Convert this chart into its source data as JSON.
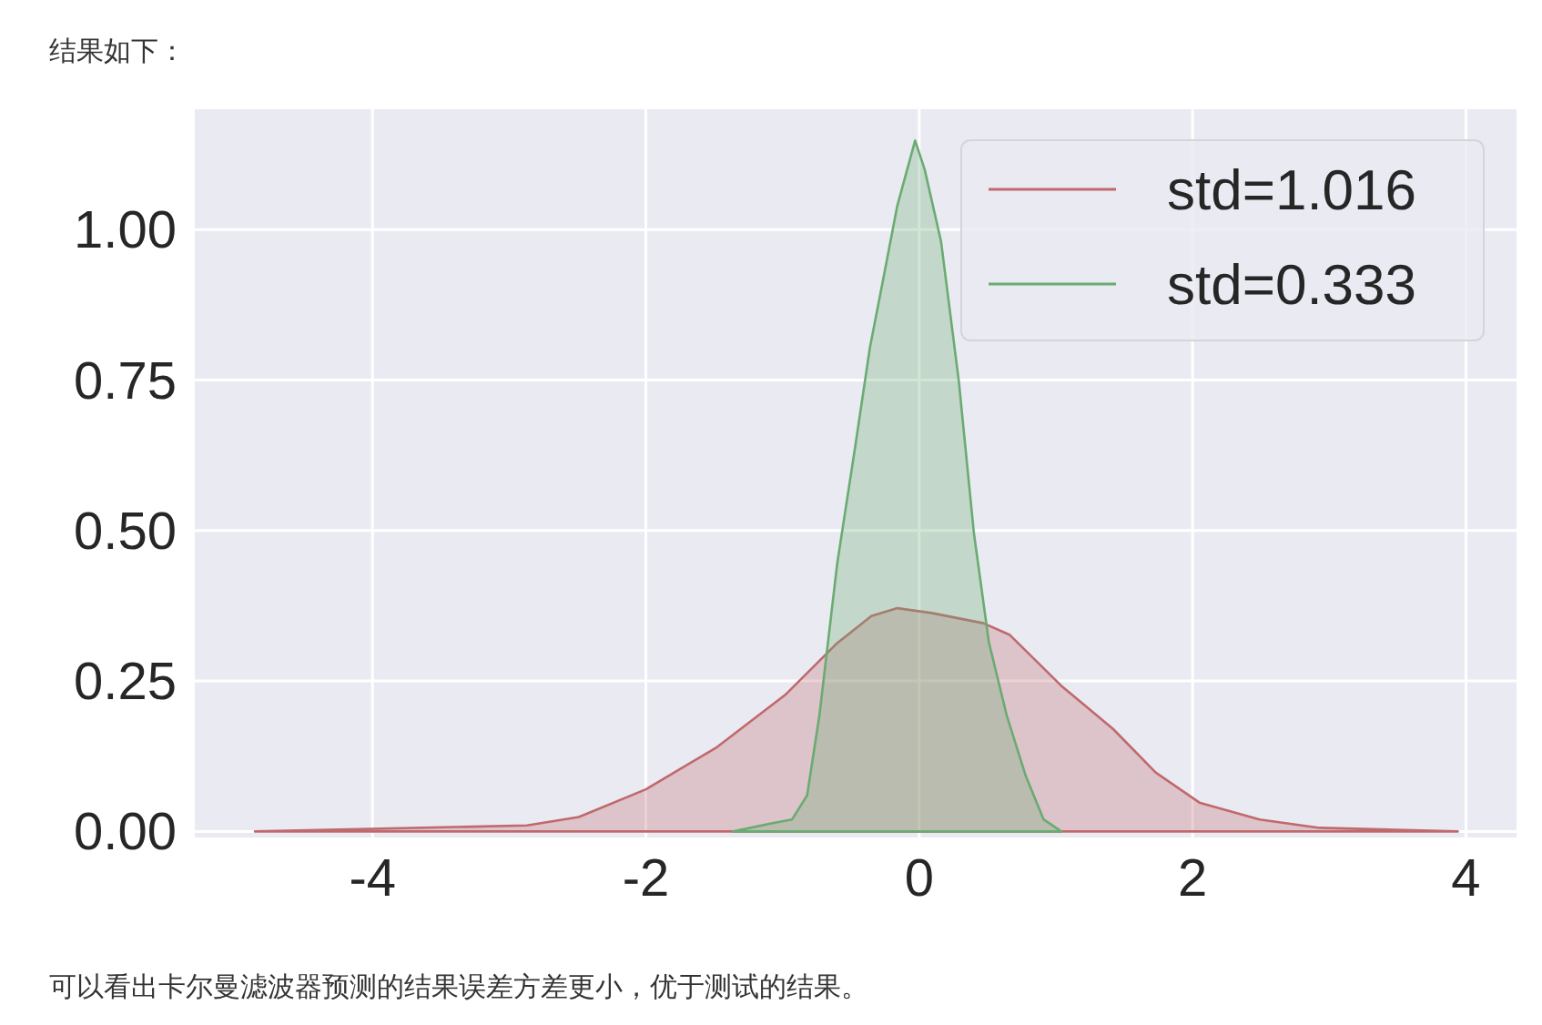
{
  "chart_data": {
    "type": "area",
    "title": "结果如下：",
    "annotations": [
      "可以看出卡尔曼滤波器预测的结果误差方差更小，优于测试的结果。"
    ],
    "series": [
      {
        "name": "std=1.016",
        "color": "#c0696d",
        "x": [
          -4.86,
          -2.87,
          -2.49,
          -2.0,
          -1.48,
          -0.98,
          -0.6,
          -0.35,
          -0.16,
          0.09,
          0.47,
          0.66,
          1.04,
          1.42,
          1.73,
          2.05,
          2.49,
          2.93,
          3.94
        ],
        "values": [
          0,
          0.01,
          0.024,
          0.07,
          0.14,
          0.227,
          0.313,
          0.358,
          0.371,
          0.363,
          0.346,
          0.327,
          0.242,
          0.17,
          0.098,
          0.048,
          0.02,
          0.006,
          0
        ]
      },
      {
        "name": "std=0.333",
        "color": "#6aab72",
        "x": [
          -1.36,
          -1.09,
          -0.93,
          -0.82,
          -0.73,
          -0.6,
          -0.47,
          -0.36,
          -0.27,
          -0.16,
          -0.03,
          0.04,
          0.16,
          0.29,
          0.4,
          0.51,
          0.64,
          0.78,
          0.91,
          1.04
        ],
        "values": [
          0,
          0.013,
          0.02,
          0.06,
          0.193,
          0.445,
          0.637,
          0.805,
          0.91,
          1.04,
          1.148,
          1.1,
          0.98,
          0.748,
          0.496,
          0.314,
          0.193,
          0.092,
          0.02,
          0
        ]
      }
    ],
    "xlim": [
      -5.3,
      4.37
    ],
    "ylim": [
      -0.01,
      1.2
    ],
    "xticks": [
      -4,
      -2,
      0,
      2,
      4
    ],
    "yticks": [
      {
        "value": 0,
        "label": "0.00"
      },
      {
        "value": 0.25,
        "label": "0.25"
      },
      {
        "value": 0.5,
        "label": "0.50"
      },
      {
        "value": 0.75,
        "label": "0.75"
      },
      {
        "value": 1,
        "label": "1.00"
      }
    ],
    "grid": true,
    "legend": "top right"
  }
}
